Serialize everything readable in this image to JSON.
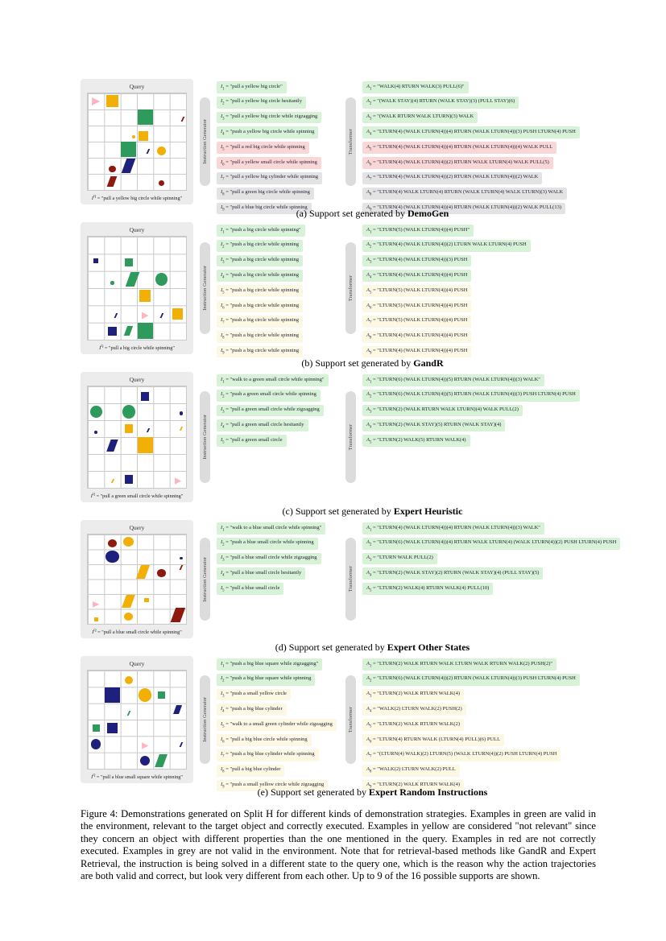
{
  "figure": {
    "label": "Figure 4:",
    "caption": "Demonstrations generated on Split H for different kinds of demonstration strategies. Examples in green are valid in the environment, relevant to the target object and correctly executed. Examples in yellow are considered \"not relevant\" since they concern an object with different properties than the one mentioned in the query. Examples in red are not correctly executed. Examples in grey are not valid in the environment. Note that for retrieval-based methods like GandR and Expert Retrieval, the instruction is being solved in a different state to the query one, which is the reason why the action trajectories are both valid and correct, but look very different from each other. Up to 9 of the 16 possible supports are shown."
  },
  "labels": {
    "query_title": "Query",
    "instruction_generator": "Instruction Generator",
    "transformer": "Transformer",
    "query_var": "I",
    "query_sup": "Q",
    "instr_var": "I",
    "action_var": "A",
    "eq": " = "
  },
  "colors": {
    "pill_green": "#d8f2d8",
    "pill_yellow": "#fcf8e3",
    "pill_red": "#fad7d7",
    "pill_grey": "#e3e3e3",
    "shape_yellow": "#f2b007",
    "shape_green": "#2e9a5c",
    "shape_navy": "#1f1f7d",
    "shape_red": "#8e1a0f",
    "shape_pink": "#ffb3c1",
    "card_bg": "#ececec",
    "bar_bg": "#dcdcdc"
  },
  "panels": [
    {
      "id": "a",
      "caption": {
        "index": "(a)",
        "text": "Support set generated by",
        "method": "DemoGen"
      },
      "query": "\"pull a yellow big circle while spinning\"",
      "instructions": [
        {
          "n": 1,
          "text": "\"pull a yellow big circle\"",
          "status": "green"
        },
        {
          "n": 2,
          "text": "\"pull a yellow big circle hesitantly",
          "status": "green"
        },
        {
          "n": 3,
          "text": "\"pull a yellow big circle while zigzagging",
          "status": "green"
        },
        {
          "n": 4,
          "text": "\"push a yellow big circle while spinning",
          "status": "green"
        },
        {
          "n": 5,
          "text": "\"pull a red big circle while spinning",
          "status": "red"
        },
        {
          "n": 6,
          "text": "\"pull a yellow small circle while spinning",
          "status": "red"
        },
        {
          "n": 7,
          "text": "\"pull a yellow big cylinder while spinning",
          "status": "grey"
        },
        {
          "n": 8,
          "text": "\"pull a green big circle while spinning",
          "status": "grey"
        },
        {
          "n": 9,
          "text": "\"pull a blue big circle while spinning",
          "status": "grey"
        }
      ],
      "actions": [
        {
          "n": 1,
          "text": "\"WALK(4) RTURN WALK(3) PULL(6)\"",
          "status": "green"
        },
        {
          "n": 2,
          "text": "\"(WALK STAY)(4) RTURN (WALK STAY)(3) (PULL STAY)(6)",
          "status": "green"
        },
        {
          "n": 3,
          "text": "\"(WALK RTURN WALK LTURN)(3) WALK",
          "status": "green"
        },
        {
          "n": 4,
          "text": "\"LTURN(4) (WALK LTURN(4))(4) RTURN (WALK LTURN(4))(3) PUSH LTURN(4) PUSH",
          "status": "green"
        },
        {
          "n": 5,
          "text": "\"LTURN(4) (WALK LTURN(4))(4) RTURN (WALK LTURN(4))(4) WALK PULL",
          "status": "red"
        },
        {
          "n": 6,
          "text": "\"LTURN(4) (WALK LTURN(4))(2) RTURN WALK LTURN(4) WALK PULL(5)",
          "status": "red"
        },
        {
          "n": 7,
          "text": "\"LTURN(4) (WALK LTURN(4))(2) RTURN (WALK LTURN(4))(2) WALK",
          "status": "grey"
        },
        {
          "n": 8,
          "text": "\"LTURN(4) WALK LTURN(4) RTURN (WALK LTURN(4) WALK LTURN)(3) WALK",
          "status": "grey"
        },
        {
          "n": 9,
          "text": "\"LTURN(4) (WALK LTURN(4))(4) RTURN (WALK LTURN(4))(2) WALK PULL(13)",
          "status": "grey"
        }
      ],
      "shapes": [
        [
          0,
          0,
          "agent",
          "pink",
          0.5
        ],
        [
          0,
          1,
          "square",
          "yellow",
          0.75
        ],
        [
          1,
          3,
          "square",
          "green",
          0.95
        ],
        [
          1.1,
          5.3,
          "stroke",
          "red",
          0.3
        ],
        [
          2.2,
          2.3,
          "circle",
          "yellow",
          0.22
        ],
        [
          2.15,
          2.9,
          "square",
          "yellow",
          0.62
        ],
        [
          3,
          2,
          "square",
          "green",
          0.95
        ],
        [
          3.1,
          3.2,
          "stroke",
          "navy",
          0.28
        ],
        [
          3.1,
          4,
          "circle",
          "yellow",
          0.55
        ],
        [
          4.2,
          1,
          "circle",
          "red",
          0.4
        ],
        [
          4,
          2,
          "cylinder",
          "navy",
          0.9
        ],
        [
          5,
          1,
          "cylinder",
          "red",
          0.65
        ],
        [
          5.1,
          4,
          "circle",
          "red",
          0.35
        ]
      ]
    },
    {
      "id": "b",
      "caption": {
        "index": "(b)",
        "text": "Support set generated by",
        "method": "GandR"
      },
      "query": "\"pull a big circle while spinning\"",
      "instructions": [
        {
          "n": 1,
          "text": "\"push a big circle while spinning\"",
          "status": "green"
        },
        {
          "n": 2,
          "text": "\"push a big circle while spinning",
          "status": "green"
        },
        {
          "n": 3,
          "text": "\"push a big circle while spinning",
          "status": "green"
        },
        {
          "n": 4,
          "text": "\"push a big circle while spinning",
          "status": "green"
        },
        {
          "n": 5,
          "text": "\"push a big circle while spinning",
          "status": "yellow"
        },
        {
          "n": 6,
          "text": "\"push a big circle while spinning",
          "status": "yellow"
        },
        {
          "n": 7,
          "text": "\"push a big circle while spinning",
          "status": "yellow"
        },
        {
          "n": 8,
          "text": "\"push a big circle while spinning",
          "status": "yellow"
        },
        {
          "n": 9,
          "text": "\"push a big circle while spinning",
          "status": "yellow"
        }
      ],
      "actions": [
        {
          "n": 1,
          "text": "\"LTURN(5) (WALK LTURN(4))(4) PUSH\"",
          "status": "green"
        },
        {
          "n": 2,
          "text": "\"LTURN(4) (WALK LTURN(4))(2) LTURN WALK LTURN(4) PUSH",
          "status": "green"
        },
        {
          "n": 3,
          "text": "\"LTURN(4) (WALK LTURN(4))(3) PUSH",
          "status": "green"
        },
        {
          "n": 4,
          "text": "\"LTURN(4) (WALK LTURN(4))(4) PUSH",
          "status": "green"
        },
        {
          "n": 5,
          "text": "\"LTURN(5) (WALK LTURN(4))(4) PUSH",
          "status": "yellow"
        },
        {
          "n": 6,
          "text": "\"LTURN(5) (WALK LTURN(4))(4) PUSH",
          "status": "yellow"
        },
        {
          "n": 7,
          "text": "\"LTURN(5) (WALK LTURN(4))(4) PUSH",
          "status": "yellow"
        },
        {
          "n": 8,
          "text": "\"LTURN(4) (WALK LTURN(4))(4) PUSH",
          "status": "yellow"
        },
        {
          "n": 9,
          "text": "\"LTURN(4) (WALK LTURN(4))(4) PUSH",
          "status": "yellow"
        }
      ],
      "shapes": [
        [
          0.9,
          0,
          "square",
          "navy",
          0.3
        ],
        [
          1,
          2,
          "square",
          "green",
          0.5
        ],
        [
          2.2,
          1,
          "circle",
          "green",
          0.2
        ],
        [
          2,
          2.2,
          "cylinder",
          "green",
          0.85
        ],
        [
          2,
          4,
          "circle",
          "green",
          0.75
        ],
        [
          2.95,
          3,
          "square",
          "yellow",
          0.7
        ],
        [
          4.1,
          1.2,
          "stroke",
          "navy",
          0.26
        ],
        [
          4.1,
          3,
          "agent",
          "pink",
          0.42
        ],
        [
          4.1,
          4,
          "stroke",
          "navy",
          0.26
        ],
        [
          4,
          5,
          "square",
          "yellow",
          0.65
        ],
        [
          5,
          1,
          "square",
          "navy",
          0.5
        ],
        [
          5,
          2,
          "cylinder",
          "green",
          0.55
        ],
        [
          5,
          3,
          "square",
          "green",
          0.95
        ]
      ]
    },
    {
      "id": "c",
      "caption": {
        "index": "(c)",
        "text": "Support set generated by",
        "method": "Expert Heuristic"
      },
      "query": "\"pull a green small circle while spinning\"",
      "instructions": [
        {
          "n": 1,
          "text": "\"walk to a green small circle while spinning\"",
          "status": "green"
        },
        {
          "n": 2,
          "text": "\"push a green small circle while spinning",
          "status": "green"
        },
        {
          "n": 3,
          "text": "\"pull a green small circle while zigzagging",
          "status": "green"
        },
        {
          "n": 4,
          "text": "\"pull a green small circle hesitantly",
          "status": "green"
        },
        {
          "n": 5,
          "text": "\"pull a green small circle",
          "status": "green"
        }
      ],
      "actions": [
        {
          "n": 1,
          "text": "\"LTURN(6) (WALK LTURN(4))(5) RTURN (WALK LTURN(4))(3) WALK\"",
          "status": "green"
        },
        {
          "n": 2,
          "text": "\"LTURN(6) (WALK LTURN(4))(5) RTURN (WALK LTURN(4))(3) PUSH LTURN(4) PUSH",
          "status": "green"
        },
        {
          "n": 3,
          "text": "\"LTURN(2) (WALK RTURN WALK LTURN)(4) WALK PULL(2)",
          "status": "green"
        },
        {
          "n": 4,
          "text": "\"LTURN(2) (WALK STAY)(5) RTURN (WALK STAY)(4)",
          "status": "green"
        },
        {
          "n": 5,
          "text": "\"LTURN(2) WALK(5) RTURN WALK(4)",
          "status": "green"
        }
      ],
      "shapes": [
        [
          0.1,
          3,
          "square",
          "navy",
          0.5
        ],
        [
          1,
          0,
          "circle",
          "green",
          0.75
        ],
        [
          1,
          2,
          "circle",
          "green",
          0.8
        ],
        [
          1.1,
          5.2,
          "circle",
          "navy",
          0.2
        ],
        [
          2.2,
          0,
          "circle",
          "navy",
          0.2
        ],
        [
          2,
          2,
          "square",
          "yellow",
          0.5
        ],
        [
          2.1,
          3.2,
          "stroke",
          "navy",
          0.25
        ],
        [
          2,
          5.2,
          "stroke",
          "yellow",
          0.25
        ],
        [
          3,
          1,
          "cylinder",
          "navy",
          0.7
        ],
        [
          3,
          3,
          "square",
          "yellow",
          0.95
        ],
        [
          5.1,
          1,
          "stroke",
          "yellow",
          0.25
        ],
        [
          5,
          2,
          "square",
          "navy",
          0.5
        ],
        [
          5.1,
          5,
          "agent",
          "pink",
          0.42
        ]
      ]
    },
    {
      "id": "d",
      "caption": {
        "index": "(d)",
        "text": "Support set generated by",
        "method": "Expert Other States"
      },
      "query": "\"pull a blue small circle while spinning\"",
      "instructions": [
        {
          "n": 1,
          "text": "\"walk to a blue small circle while spinning\"",
          "status": "green"
        },
        {
          "n": 2,
          "text": "\"push a blue small circle while spinning",
          "status": "green"
        },
        {
          "n": 3,
          "text": "\"pull a blue small circle while zigzagging",
          "status": "green"
        },
        {
          "n": 4,
          "text": "\"pull a blue small circle hesitantly",
          "status": "green"
        },
        {
          "n": 5,
          "text": "\"pull a blue small circle",
          "status": "green"
        }
      ],
      "actions": [
        {
          "n": 1,
          "text": "\"LTURN(4) (WALK LTURN(4))(4) RTURN (WALK LTURN(4))(3) WALK\"",
          "status": "green"
        },
        {
          "n": 2,
          "text": "\"LTURN(6) (WALK LTURN(4))(4) RTURN WALK LTURN(4) (WALK LTURN(4))(2) PUSH LTURN(4) PUSH",
          "status": "green"
        },
        {
          "n": 3,
          "text": "\"LTURN WALK PULL(2)",
          "status": "green"
        },
        {
          "n": 4,
          "text": "\"LTURN(2) (WALK STAY)(2) RTURN (WALK STAY)(4) (PULL STAY)(5)",
          "status": "green"
        },
        {
          "n": 5,
          "text": "\"LTURN(2) WALK(4) RTURN WALK(4) PULL(10)",
          "status": "green"
        }
      ],
      "shapes": [
        [
          0.1,
          1,
          "circle",
          "red",
          0.55
        ],
        [
          0,
          2,
          "circle",
          "yellow",
          0.65
        ],
        [
          1,
          1,
          "circle",
          "navy",
          0.8
        ],
        [
          1.1,
          5.2,
          "circle",
          "navy",
          0.2
        ],
        [
          1.7,
          5.2,
          "stroke",
          "red",
          0.3
        ],
        [
          2,
          2.9,
          "cylinder",
          "yellow",
          0.9
        ],
        [
          2.1,
          4,
          "circle",
          "red",
          0.5
        ],
        [
          4.2,
          0,
          "agent",
          "pink",
          0.42
        ],
        [
          4,
          2,
          "cylinder",
          "yellow",
          0.85
        ],
        [
          3.9,
          3.1,
          "square",
          "yellow",
          0.28
        ],
        [
          5.2,
          0,
          "square",
          "yellow",
          0.25
        ],
        [
          5,
          2,
          "circle",
          "yellow",
          0.55
        ],
        [
          4.9,
          5,
          "cylinder",
          "red",
          0.95
        ]
      ]
    },
    {
      "id": "e",
      "caption": {
        "index": "(e)",
        "text": "Support set generated by",
        "method": "Expert Random Instructions"
      },
      "query": "\"pull a blue small square while spinning\"",
      "instructions": [
        {
          "n": 1,
          "text": "\"push a big blue square while zigzagging\"",
          "status": "green"
        },
        {
          "n": 2,
          "text": "\"push a big blue square while spinning",
          "status": "green"
        },
        {
          "n": 3,
          "text": "\"push a small yellow circle",
          "status": "yellow"
        },
        {
          "n": 4,
          "text": "\"push a big blue cylinder",
          "status": "yellow"
        },
        {
          "n": 5,
          "text": "\"walk to a small green cylinder while zigzagging",
          "status": "yellow"
        },
        {
          "n": 6,
          "text": "\"pull a big blue circle while spinning",
          "status": "yellow"
        },
        {
          "n": 7,
          "text": "\"push a big blue cylinder while spinning",
          "status": "yellow"
        },
        {
          "n": 8,
          "text": "\"pull a big blue cylinder",
          "status": "yellow"
        },
        {
          "n": 9,
          "text": "\"push a small yellow circle while zigzagging",
          "status": "yellow"
        }
      ],
      "actions": [
        {
          "n": 1,
          "text": "\"LTURN(2) WALK RTURN WALK LTURN WALK RTURN WALK(2) PUSH(2)\"",
          "status": "green"
        },
        {
          "n": 2,
          "text": "\"LTURN(6) (WALK LTURN(4))(2) RTURN (WALK LTURN(4))(3) PUSH LTURN(4) PUSH",
          "status": "green"
        },
        {
          "n": 3,
          "text": "\"LTURN(2) WALK RTURN WALK(4)",
          "status": "yellow"
        },
        {
          "n": 4,
          "text": "\"WALK(2) LTURN WALK(2) PUSH(2)",
          "status": "yellow"
        },
        {
          "n": 5,
          "text": "\"LTURN(2) WALK RTURN WALK(2)",
          "status": "yellow"
        },
        {
          "n": 6,
          "text": "\"LTURN(4) RTURN WALK (LTURN(4) PULL)(6) PULL",
          "status": "yellow"
        },
        {
          "n": 7,
          "text": "\"(LTURN(4) WALK)(2) LTURN(5) (WALK LTURN(4))(2) PUSH LTURN(4) PUSH",
          "status": "yellow"
        },
        {
          "n": 8,
          "text": "\"WALK(2) LTURN WALK(2) PULL",
          "status": "yellow"
        },
        {
          "n": 9,
          "text": "\"LTURN(2) WALK RTURN WALK(4)",
          "status": "yellow"
        }
      ],
      "shapes": [
        [
          0.1,
          2,
          "circle",
          "yellow",
          0.5
        ],
        [
          1,
          1,
          "square",
          "navy",
          0.9
        ],
        [
          1,
          3,
          "circle",
          "yellow",
          0.8
        ],
        [
          1,
          4,
          "square",
          "green",
          0.45
        ],
        [
          2.1,
          2,
          "stroke",
          "green",
          0.3
        ],
        [
          1.9,
          5,
          "cylinder",
          "navy",
          0.55
        ],
        [
          3,
          0,
          "square",
          "green",
          0.45
        ],
        [
          3,
          1,
          "square",
          "navy",
          0.65
        ],
        [
          4,
          0,
          "circle",
          "navy",
          0.6
        ],
        [
          4.1,
          3,
          "agent",
          "pink",
          0.4
        ],
        [
          4,
          5.2,
          "stroke",
          "navy",
          0.28
        ],
        [
          5,
          3,
          "circle",
          "navy",
          0.6
        ],
        [
          5,
          4,
          "cylinder",
          "green",
          0.8
        ]
      ]
    }
  ]
}
